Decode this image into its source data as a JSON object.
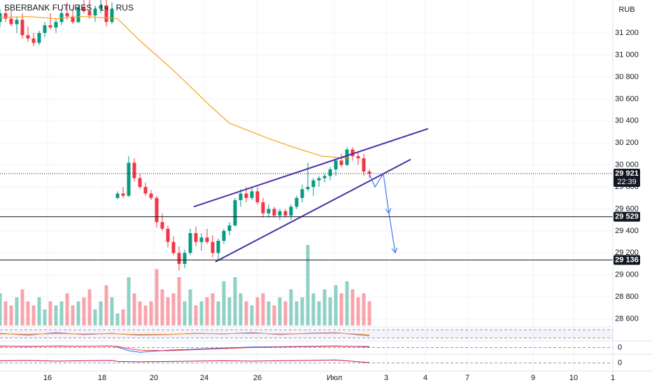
{
  "chart_data": {
    "type": "candlestick",
    "title": "SBERBANK FUTURES · 1ч · RUS",
    "currency": "RUB",
    "up_color": "#089981",
    "down_color": "#f23645",
    "xlim": [
      0,
      219
    ],
    "xticks": [
      {
        "value": 17,
        "label": "16"
      },
      {
        "value": 36.5,
        "label": "18"
      },
      {
        "value": 55,
        "label": "20"
      },
      {
        "value": 73,
        "label": "24"
      },
      {
        "value": 92,
        "label": "26"
      },
      {
        "value": 119.5,
        "label": "Июл"
      },
      {
        "value": 138,
        "label": "3"
      },
      {
        "value": 152,
        "label": "4"
      },
      {
        "value": 167,
        "label": "7"
      },
      {
        "value": 190.5,
        "label": "9"
      },
      {
        "value": 205,
        "label": "10"
      },
      {
        "value": 219,
        "label": "1"
      }
    ],
    "ylim": [
      28540,
      31500
    ],
    "yticks": [
      {
        "value": 28600,
        "label": "28 600"
      },
      {
        "value": 28800,
        "label": "28 800"
      },
      {
        "value": 29000,
        "label": "29 000"
      },
      {
        "value": 29200,
        "label": "29 200"
      },
      {
        "value": 29400,
        "label": "29 400"
      },
      {
        "value": 29600,
        "label": "29 600"
      },
      {
        "value": 29800,
        "label": "29 800"
      },
      {
        "value": 30000,
        "label": "30 000"
      },
      {
        "value": 30200,
        "label": "30 200"
      },
      {
        "value": 30400,
        "label": "30 400"
      },
      {
        "value": 30600,
        "label": "30 600"
      },
      {
        "value": 30800,
        "label": "30 800"
      },
      {
        "value": 31000,
        "label": "31 000"
      },
      {
        "value": 31200,
        "label": "31 200"
      }
    ],
    "grid": true,
    "x": [
      0,
      2,
      4,
      6,
      8,
      10,
      12,
      14,
      16,
      18,
      20,
      22,
      24,
      26,
      28,
      30,
      32,
      34,
      36,
      38,
      40,
      42,
      44,
      46,
      48,
      50,
      52,
      54,
      56,
      58,
      60,
      62,
      64,
      66,
      68,
      70,
      72,
      74,
      76,
      78,
      80,
      82,
      84,
      86,
      88,
      90,
      92,
      94,
      96,
      98,
      100,
      102,
      104,
      106,
      108,
      110,
      112,
      114,
      116,
      118,
      120,
      122,
      124,
      126,
      128,
      130,
      132
    ],
    "open": [
      31300,
      31380,
      31330,
      31280,
      31320,
      31180,
      31150,
      31110,
      31200,
      31270,
      31250,
      31300,
      31380,
      31350,
      31300,
      31430,
      31400,
      31360,
      31420,
      31450,
      31300,
      29700,
      29740,
      29720,
      30020,
      29880,
      29800,
      29740,
      29700,
      29480,
      29420,
      29300,
      29200,
      29100,
      29200,
      29380,
      29300,
      29340,
      29300,
      29200,
      29310,
      29400,
      29450,
      29680,
      29740,
      29700,
      29760,
      29660,
      29560,
      29600,
      29540,
      29580,
      29540,
      29620,
      29700,
      29780,
      29800,
      29860,
      29880,
      29900,
      29960,
      30040,
      30000,
      30140,
      30080,
      30060,
      29940
    ],
    "high": [
      31420,
      31450,
      31400,
      31350,
      31380,
      31260,
      31200,
      31220,
      31300,
      31380,
      31330,
      31420,
      31480,
      31420,
      31460,
      31520,
      31500,
      31450,
      31520,
      31500,
      31480,
      29760,
      29800,
      30080,
      30060,
      29920,
      29840,
      29770,
      29720,
      29560,
      29450,
      29350,
      29260,
      29230,
      29420,
      29440,
      29380,
      29420,
      29360,
      29330,
      29420,
      29480,
      29700,
      29780,
      29800,
      29790,
      29800,
      29700,
      29640,
      29620,
      29600,
      29600,
      29640,
      29720,
      29820,
      30020,
      29880,
      29900,
      29920,
      29980,
      30060,
      30100,
      30160,
      30160,
      30120,
      30100,
      29960
    ],
    "low": [
      31250,
      31300,
      31260,
      31200,
      31150,
      31120,
      31080,
      31090,
      31160,
      31230,
      31200,
      31270,
      31320,
      31280,
      31290,
      31380,
      31330,
      31300,
      31380,
      31260,
      31280,
      29690,
      29700,
      29710,
      29850,
      29780,
      29720,
      29680,
      29430,
      29400,
      29250,
      29180,
      29040,
      29060,
      29180,
      29260,
      29220,
      29280,
      29160,
      29140,
      29280,
      29360,
      29440,
      29620,
      29660,
      29680,
      29640,
      29520,
      29520,
      29520,
      29500,
      29520,
      29500,
      29600,
      29660,
      29760,
      29720,
      29800,
      29840,
      29860,
      29900,
      29980,
      29990,
      30040,
      30000,
      29900,
      29880
    ],
    "close": [
      31380,
      31330,
      31280,
      31320,
      31180,
      31150,
      31110,
      31200,
      31270,
      31250,
      31300,
      31380,
      31350,
      31300,
      31430,
      31400,
      31360,
      31420,
      31450,
      31300,
      31420,
      29740,
      29720,
      30020,
      29880,
      29800,
      29740,
      29700,
      29480,
      29420,
      29300,
      29200,
      29100,
      29200,
      29380,
      29300,
      29340,
      29300,
      29200,
      29310,
      29400,
      29450,
      29680,
      29740,
      29700,
      29760,
      29660,
      29560,
      29600,
      29540,
      29580,
      29540,
      29620,
      29700,
      29780,
      29800,
      29860,
      29880,
      29900,
      29960,
      30040,
      30000,
      30140,
      30080,
      30060,
      29940,
      29921
    ],
    "volume": [
      40,
      30,
      25,
      35,
      45,
      30,
      25,
      35,
      20,
      30,
      25,
      30,
      40,
      25,
      30,
      35,
      45,
      20,
      30,
      50,
      35,
      15,
      20,
      60,
      40,
      30,
      25,
      30,
      70,
      45,
      35,
      40,
      60,
      30,
      45,
      25,
      30,
      35,
      40,
      30,
      55,
      35,
      60,
      40,
      30,
      25,
      35,
      40,
      30,
      25,
      35,
      30,
      45,
      30,
      35,
      100,
      40,
      30,
      45,
      35,
      50,
      40,
      55,
      45,
      35,
      40,
      30
    ],
    "ma": {
      "color": "#f7a21b",
      "x": [
        0,
        10,
        20,
        30,
        42,
        50,
        62,
        75,
        82,
        95,
        105,
        115,
        125
      ],
      "values": [
        31340,
        31350,
        31330,
        31350,
        31330,
        31130,
        30860,
        30540,
        30380,
        30250,
        30160,
        30080,
        30060
      ]
    },
    "trend_lines": {
      "color": "#4b2ea8",
      "lines": [
        {
          "x": [
            69.25,
            153
          ],
          "y": [
            29620,
            30330
          ]
        },
        {
          "x": [
            77,
            146.75
          ],
          "y": [
            29120,
            30050
          ]
        }
      ]
    },
    "projection": {
      "color": "#3d7bf2",
      "x": [
        132,
        134,
        137,
        139,
        141.25
      ],
      "y": [
        29920,
        29800,
        29920,
        29560,
        29200
      ]
    },
    "levels": [
      {
        "value": 29529,
        "label": "29 529"
      },
      {
        "value": 29136,
        "label": "29 136"
      }
    ],
    "last_price": {
      "value": 29921,
      "label": "29 921",
      "timer": "22:39"
    },
    "panes": [
      {
        "ylim": [
          0,
          100
        ],
        "yticks": [],
        "series": [
          {
            "color": "#7e57c2",
            "x": [
              0,
              10,
              20,
              30,
              40,
              42,
              50,
              60,
              70,
              80,
              90,
              100,
              110,
              120,
              132
            ],
            "values": [
              55,
              40,
              60,
              45,
              55,
              50,
              40,
              45,
              55,
              50,
              60,
              45,
              55,
              60,
              35
            ]
          },
          {
            "color": "#f7a21b",
            "x": [
              0,
              10,
              20,
              30,
              40,
              42,
              50,
              60,
              70,
              80,
              90,
              100,
              110,
              120,
              132
            ],
            "values": [
              50,
              48,
              52,
              50,
              52,
              50,
              45,
              47,
              52,
              52,
              55,
              50,
              52,
              56,
              45
            ]
          }
        ]
      },
      {
        "ylim": [
          -1,
          1
        ],
        "yticks": [
          0
        ],
        "series": [
          {
            "color": "#2962ff",
            "x": [
              0,
              10,
              20,
              30,
              40,
              42,
              46,
              50,
              60,
              70,
              80,
              90,
              100,
              110,
              120,
              132
            ],
            "values": [
              0.3,
              0.2,
              0.3,
              0.25,
              0.3,
              0.1,
              -0.6,
              -0.9,
              -0.5,
              -0.3,
              -0.1,
              0.1,
              0.15,
              0.25,
              0.3,
              0.1
            ]
          },
          {
            "color": "#f23645",
            "x": [
              0,
              10,
              20,
              30,
              40,
              42,
              46,
              50,
              60,
              70,
              80,
              90,
              100,
              110,
              120,
              132
            ],
            "values": [
              0.25,
              0.25,
              0.25,
              0.25,
              0.28,
              0.2,
              -0.2,
              -0.5,
              -0.6,
              -0.4,
              -0.2,
              0,
              0.1,
              0.2,
              0.25,
              0.2
            ]
          }
        ]
      },
      {
        "ylim": [
          -1,
          1
        ],
        "yticks": [
          0
        ],
        "series": [
          {
            "color": "#c2185b",
            "x": [
              0,
              10,
              20,
              30,
              40,
              42,
              50,
              60,
              70,
              80,
              90,
              100,
              110,
              120,
              132
            ],
            "values": [
              0.3,
              0.35,
              0.25,
              0.3,
              0.35,
              0.2,
              0.15,
              0.2,
              0.25,
              0.3,
              0.25,
              0.3,
              0.35,
              0.4,
              0.05
            ]
          }
        ]
      }
    ]
  }
}
